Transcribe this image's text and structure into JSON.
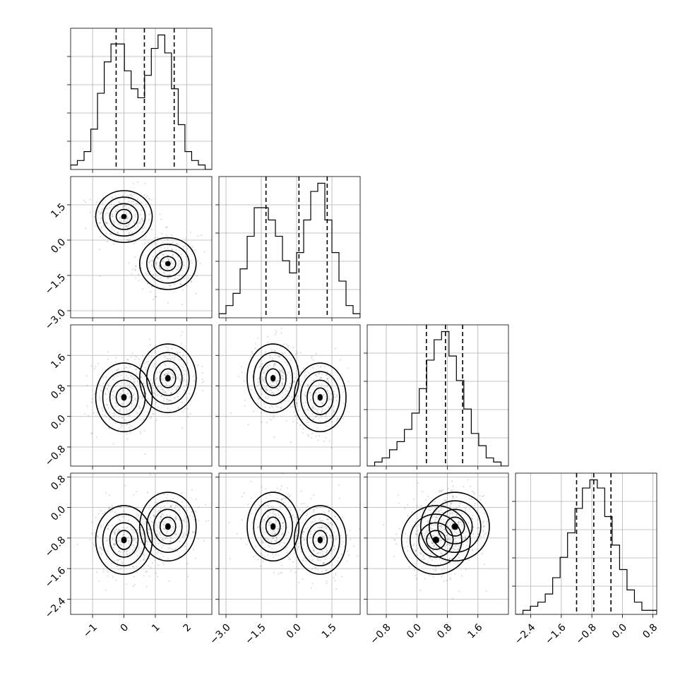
{
  "chart_data": {
    "type": "corner",
    "params": [
      {
        "ticks": [
          -1,
          0,
          1,
          2
        ],
        "tick_labels": [
          "−1",
          "0",
          "1",
          "2"
        ],
        "range": [
          -1.7,
          2.8
        ],
        "quantiles": [
          -0.25,
          0.65,
          1.6
        ],
        "hist": [
          1,
          2,
          4,
          9,
          17,
          24,
          28,
          28,
          22,
          18,
          16,
          21,
          27,
          30,
          26,
          18,
          10,
          4,
          2,
          1,
          0
        ]
      },
      {
        "ticks": [
          -3.0,
          -1.5,
          0.0,
          1.5
        ],
        "tick_labels": [
          "−3.0",
          "−1.5",
          "0.0",
          "1.5"
        ],
        "range": [
          -3.3,
          2.7
        ],
        "quantiles": [
          -1.3,
          0.1,
          1.3
        ],
        "hist": [
          1,
          3,
          6,
          12,
          20,
          27,
          27,
          24,
          20,
          14,
          11,
          16,
          24,
          31,
          33,
          24,
          16,
          9,
          3,
          1
        ]
      },
      {
        "ticks": [
          -0.8,
          0.0,
          0.8,
          1.6
        ],
        "tick_labels": [
          "−0.8",
          "0.0",
          "0.8",
          "1.6"
        ],
        "range": [
          -1.3,
          2.4
        ],
        "quantiles": [
          0.25,
          0.75,
          1.2
        ],
        "hist": [
          0,
          1,
          2,
          4,
          6,
          9,
          13,
          19,
          26,
          31,
          33,
          27,
          21,
          14,
          8,
          5,
          2,
          1,
          0
        ]
      },
      {
        "ticks": [
          -2.4,
          -1.6,
          -0.8,
          0.0,
          0.8
        ],
        "tick_labels": [
          "−2.4",
          "−1.6",
          "−0.8",
          "0.0",
          "0.8"
        ],
        "range": [
          -2.8,
          0.9
        ],
        "quantiles": [
          -1.2,
          -0.75,
          -0.3
        ],
        "hist": [
          0,
          1,
          2,
          3,
          5,
          9,
          14,
          20,
          26,
          31,
          33,
          31,
          24,
          17,
          11,
          6,
          3,
          1,
          1
        ]
      }
    ],
    "components": [
      {
        "mean": [
          0.0,
          1.0,
          0.5,
          -0.85
        ],
        "sd": [
          0.45,
          0.55,
          0.45,
          0.45
        ],
        "weight": 0.5
      },
      {
        "mean": [
          1.4,
          -1.0,
          1.0,
          -0.5
        ],
        "sd": [
          0.45,
          0.55,
          0.45,
          0.45
        ],
        "weight": 0.5
      }
    ],
    "grid": true
  }
}
